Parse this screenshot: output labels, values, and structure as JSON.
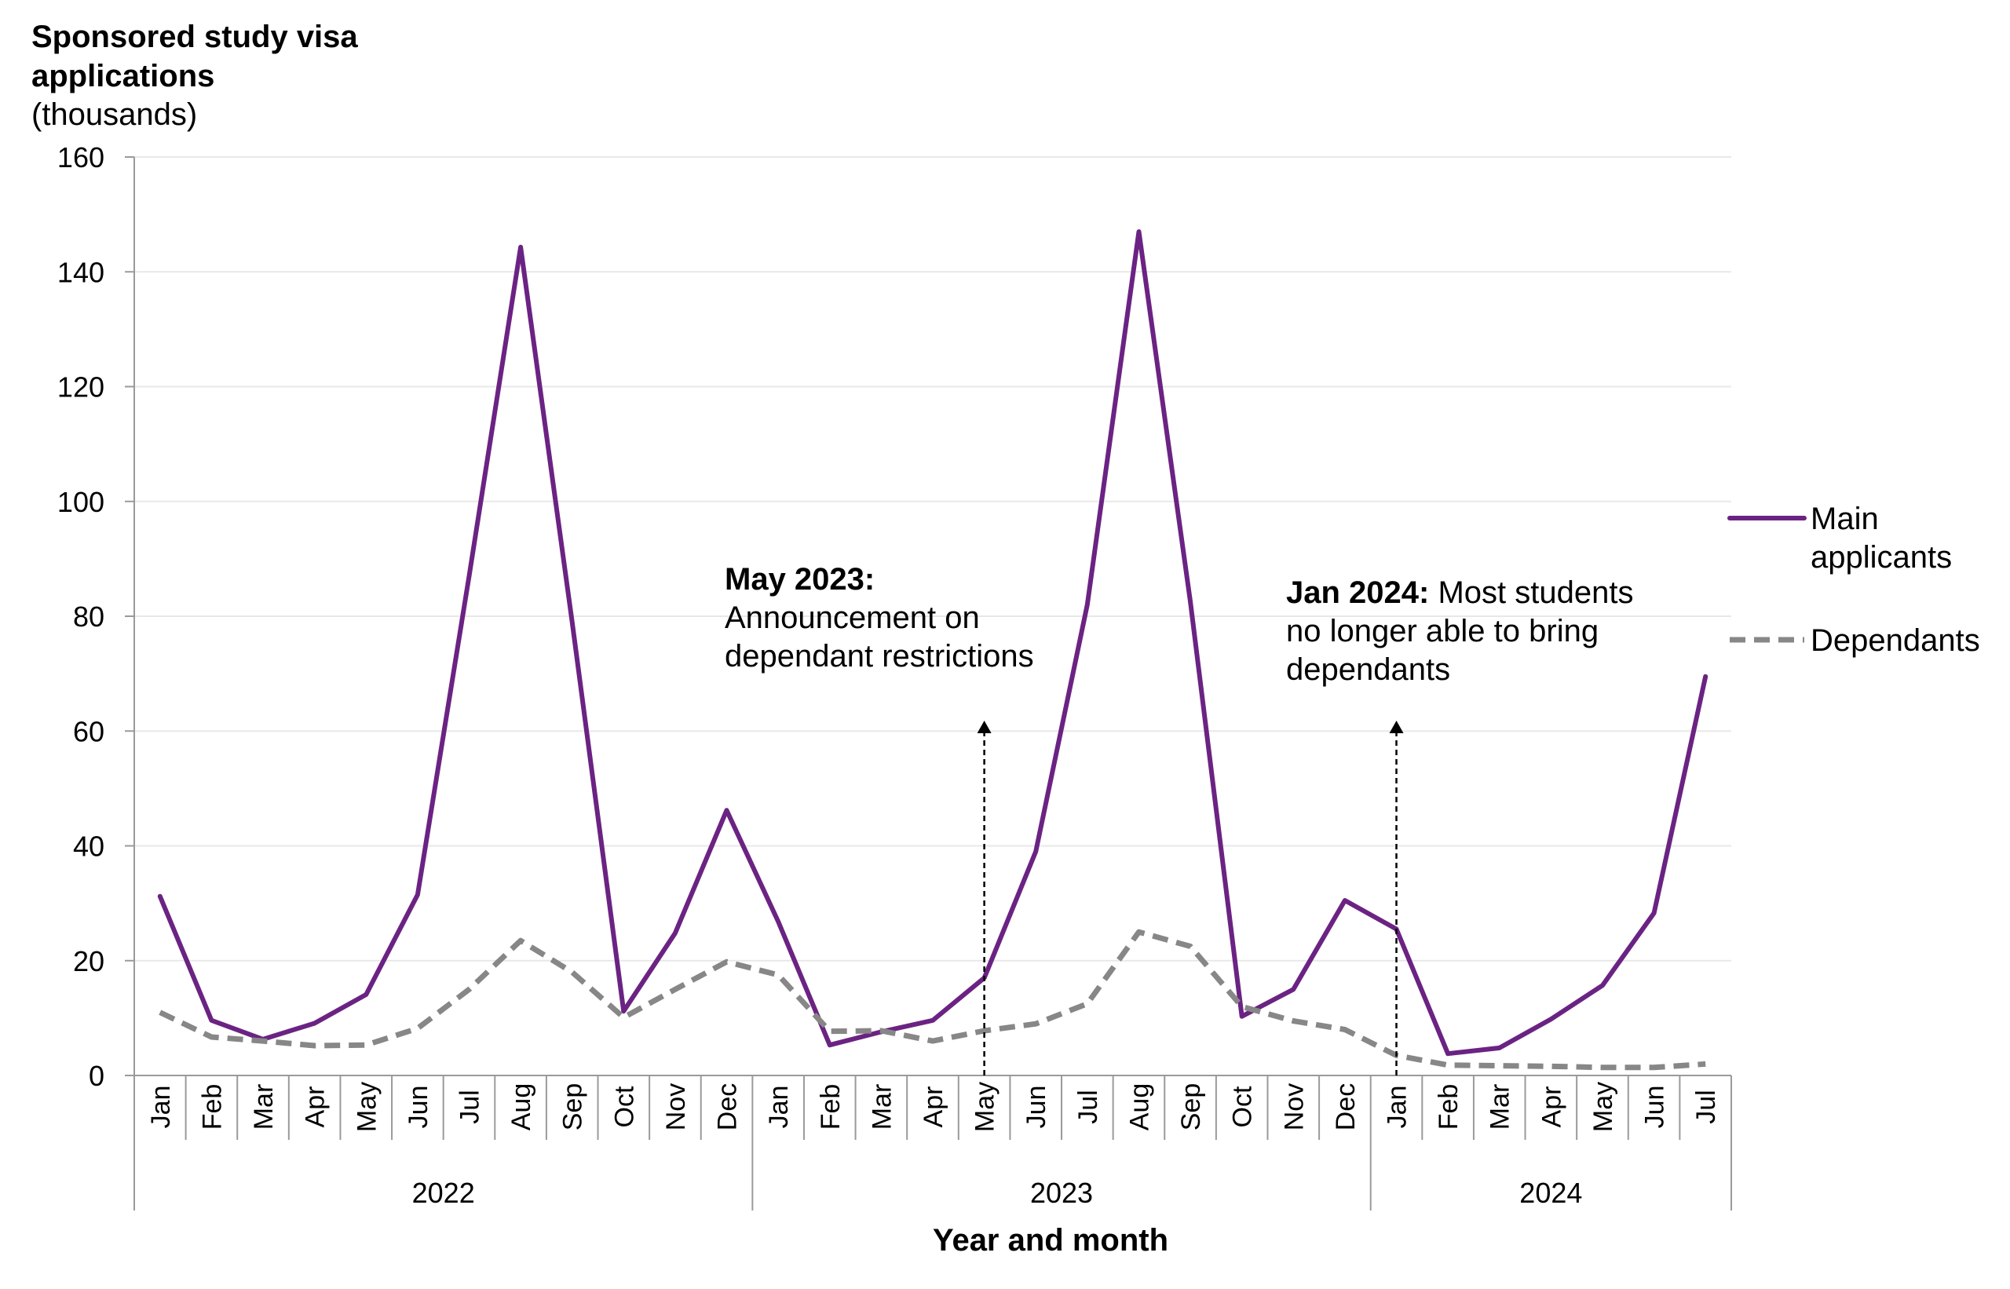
{
  "chart_data": {
    "type": "line",
    "ytitle_lines": [
      "Sponsored study visa",
      "applications"
    ],
    "yunit": "(thousands)",
    "xlabel": "Year and month",
    "ylim": [
      0,
      160
    ],
    "yticks": [
      0,
      20,
      40,
      60,
      80,
      100,
      120,
      140,
      160
    ],
    "grid": true,
    "legend_position": "right",
    "months": [
      "Jan",
      "Feb",
      "Mar",
      "Apr",
      "May",
      "Jun",
      "Jul",
      "Aug",
      "Sep",
      "Oct",
      "Nov",
      "Dec",
      "Jan",
      "Feb",
      "Mar",
      "Apr",
      "May",
      "Jun",
      "Jul",
      "Aug",
      "Sep",
      "Oct",
      "Nov",
      "Dec",
      "Jan",
      "Feb",
      "Mar",
      "Apr",
      "May",
      "Jun",
      "Jul"
    ],
    "years": [
      {
        "label": "2022",
        "start": 0,
        "count": 12
      },
      {
        "label": "2023",
        "start": 12,
        "count": 12
      },
      {
        "label": "2024",
        "start": 24,
        "count": 7
      }
    ],
    "series": [
      {
        "name_lines": [
          "Main",
          "applicants"
        ],
        "color": "#6b2383",
        "style": "solid",
        "values": [
          31.2,
          9.6,
          6.3,
          9.1,
          14.1,
          31.5,
          87.0,
          144.3,
          79.0,
          11.2,
          24.8,
          46.2,
          26.8,
          5.3,
          7.6,
          9.6,
          17.0,
          39.0,
          82.0,
          147.0,
          82.5,
          10.3,
          15.0,
          30.5,
          25.5,
          3.8,
          4.8,
          9.8,
          15.7,
          28.3,
          69.5
        ]
      },
      {
        "name_lines": [
          "Dependants"
        ],
        "color": "#878787",
        "style": "dashed",
        "values": [
          11.0,
          6.7,
          6.0,
          5.2,
          5.3,
          8.2,
          15.0,
          23.5,
          18.0,
          10.1,
          15.0,
          19.8,
          17.5,
          7.7,
          7.8,
          6.0,
          7.8,
          9.0,
          12.5,
          25.0,
          22.5,
          12.0,
          9.5,
          8.0,
          3.5,
          1.8,
          1.7,
          1.6,
          1.4,
          1.4,
          2.0
        ]
      }
    ],
    "annotations": [
      {
        "bold": "May 2023:",
        "lines": [
          "Announcement on",
          "dependant restrictions"
        ],
        "index": 16
      },
      {
        "bold": "Jan 2024:",
        "first_rest": " Most students",
        "lines": [
          "no longer able to bring",
          "dependants"
        ],
        "index": 24
      }
    ],
    "colors": {
      "main": "#6b2383",
      "dependants": "#878787",
      "grid": "#e8e8e8",
      "axis": "#9a9a9a"
    }
  }
}
